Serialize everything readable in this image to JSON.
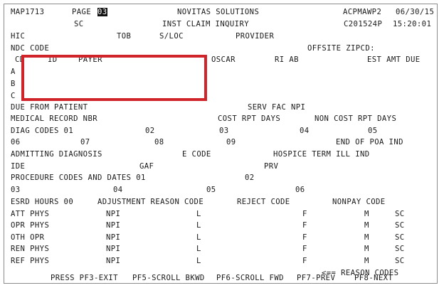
{
  "header": {
    "map_id": "MAP1713",
    "page_label": "PAGE",
    "page_number": "03",
    "company": "NOVITAS SOLUTIONS",
    "screen_code": "ACPMAWP2",
    "date": "06/30/15",
    "sc_label": "SC",
    "screen_title": "INST CLAIM INQUIRY",
    "session_code": "C201524P",
    "time": "15:20:01"
  },
  "fields": {
    "hic": "HIC",
    "tob": "TOB",
    "sloc": "S/LOC",
    "provider": "PROVIDER",
    "ndc_code": "NDC CODE",
    "offsite_zipcd": "OFFSITE ZIPCD:",
    "cd": "CD",
    "id": "ID",
    "payer": "PAYER",
    "oscar": "OSCAR",
    "ri_ab": "RI AB",
    "est_amt_due": "EST AMT DUE",
    "row_a": "A",
    "row_b": "B",
    "row_c": "C",
    "due_from_patient": "DUE FROM PATIENT",
    "serv_fac_npi": "SERV FAC NPI",
    "medical_record_nbr": "MEDICAL RECORD NBR",
    "cost_rpt_days": "COST RPT DAYS",
    "non_cost_rpt_days": "NON COST RPT DAYS",
    "diag_codes_01": "DIAG CODES 01",
    "diag_02": "02",
    "diag_03": "03",
    "diag_04": "04",
    "diag_05": "05",
    "diag_06": "06",
    "diag_07": "07",
    "diag_08": "08",
    "diag_09": "09",
    "end_of_poa_ind": "END OF POA IND",
    "admitting_diagnosis": "ADMITTING DIAGNOSIS",
    "e_code": "E CODE",
    "hospice_term_ill_ind": "HOSPICE TERM ILL IND",
    "ide": "IDE",
    "gaf": "GAF",
    "prv": "PRV",
    "procedure_codes_and_dates_01": "PROCEDURE CODES AND DATES 01",
    "proc_02": "02",
    "proc_03": "03",
    "proc_04": "04",
    "proc_05": "05",
    "proc_06": "06",
    "esrd_hours_00": "ESRD HOURS 00",
    "adjustment_reason_code": "ADJUSTMENT REASON CODE",
    "reject_code": "REJECT CODE",
    "nonpay_code": "NONPAY CODE"
  },
  "physicians": [
    {
      "label": "ATT PHYS",
      "npi": "NPI",
      "l": "L",
      "f": "F",
      "m": "M",
      "sc": "SC"
    },
    {
      "label": "OPR PHYS",
      "npi": "NPI",
      "l": "L",
      "f": "F",
      "m": "M",
      "sc": "SC"
    },
    {
      "label": "OTH OPR",
      "npi": "NPI",
      "l": "L",
      "f": "F",
      "m": "M",
      "sc": "SC"
    },
    {
      "label": "REN PHYS",
      "npi": "NPI",
      "l": "L",
      "f": "F",
      "m": "M",
      "sc": "SC"
    },
    {
      "label": "REF PHYS",
      "npi": "NPI",
      "l": "L",
      "f": "F",
      "m": "M",
      "sc": "SC"
    }
  ],
  "reason_codes_link": "<== REASON CODES",
  "function_keys": {
    "exit": "PRESS PF3-EXIT",
    "scroll_bkwd": "PF5-SCROLL BKWD",
    "scroll_fwd": "PF6-SCROLL FWD",
    "prev": "PF7-PREV",
    "next": "PF8-NEXT"
  },
  "colors": {
    "highlight_box": "#d0232a",
    "text": "#1a1a1a",
    "background": "#ffffff"
  }
}
